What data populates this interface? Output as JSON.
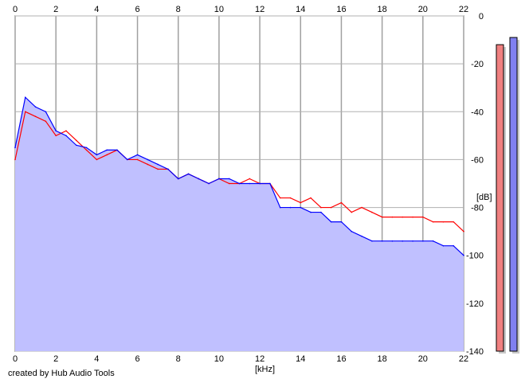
{
  "chart_data": {
    "type": "area",
    "xlabel": "[kHz]",
    "ylabel": "[dB]",
    "xlim": [
      0,
      22
    ],
    "ylim": [
      -140,
      0
    ],
    "x_ticks": [
      "0",
      "2",
      "4",
      "6",
      "8",
      "10",
      "12",
      "14",
      "16",
      "18",
      "20",
      "22"
    ],
    "y_ticks": [
      "0",
      "-20",
      "-40",
      "-60",
      "-80",
      "-100",
      "-120",
      "-140"
    ],
    "grid": true,
    "x": [
      0,
      0.5,
      1,
      1.5,
      2,
      2.5,
      3,
      3.5,
      4,
      4.5,
      5,
      5.5,
      6,
      6.5,
      7,
      7.5,
      8,
      8.5,
      9,
      9.5,
      10,
      10.5,
      11,
      11.5,
      12,
      12.5,
      13,
      13.5,
      14,
      14.5,
      15,
      15.5,
      16,
      16.5,
      17,
      17.5,
      18,
      18.5,
      19,
      19.5,
      20,
      20.5,
      21,
      21.5,
      22
    ],
    "series": [
      {
        "color": "#ff0000",
        "values": [
          -60,
          -40,
          -42,
          -44,
          -50,
          -48,
          -52,
          -56,
          -60,
          -58,
          -56,
          -60,
          -60,
          -62,
          -64,
          -64,
          -68,
          -66,
          -68,
          -70,
          -68,
          -70,
          -70,
          -68,
          -70,
          -70,
          -76,
          -76,
          -78,
          -76,
          -80,
          -80,
          -78,
          -82,
          -80,
          -82,
          -84,
          -84,
          -84,
          -84,
          -84,
          -86,
          -86,
          -86,
          -90
        ]
      },
      {
        "color": "#0000ff",
        "fill": "#c0c0ff",
        "values": [
          -55,
          -34,
          -38,
          -40,
          -48,
          -50,
          -54,
          -55,
          -58,
          -56,
          -56,
          -60,
          -58,
          -60,
          -62,
          -64,
          -68,
          -66,
          -68,
          -70,
          -68,
          -68,
          -70,
          -70,
          -70,
          -70,
          -80,
          -80,
          -80,
          -82,
          -82,
          -86,
          -86,
          -90,
          -92,
          -94,
          -94,
          -94,
          -94,
          -94,
          -94,
          -94,
          -96,
          -96,
          -100
        ]
      }
    ],
    "level_meters": [
      {
        "color": "#f08080",
        "level_db": -12
      },
      {
        "color": "#8080f0",
        "level_db": -9
      }
    ]
  },
  "footer": {
    "credit": "created by Hub Audio Tools"
  }
}
